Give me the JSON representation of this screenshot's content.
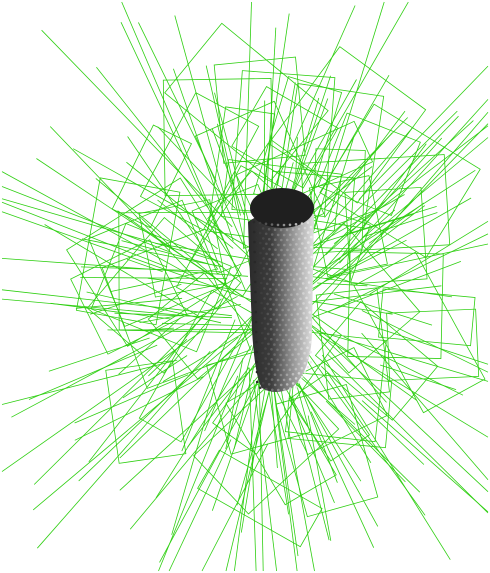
{
  "scene": {
    "background_color": "#ffffff",
    "camera_line_color": "#2fcf12",
    "object_dark_color": "#1c1c1c",
    "object_mid_color": "#5a5a5a",
    "object_light_color": "#d8d8d8"
  }
}
